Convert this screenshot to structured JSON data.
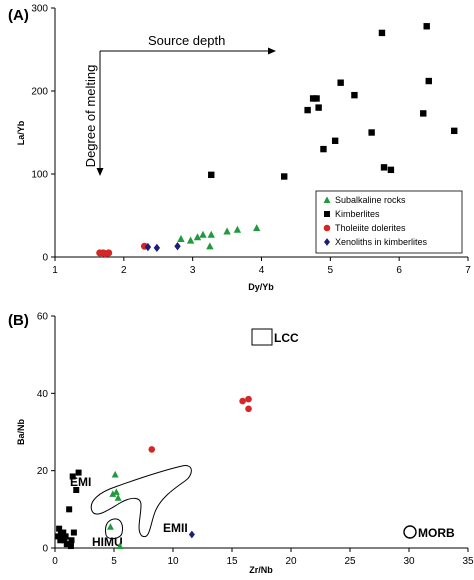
{
  "colors": {
    "subalkaline": "#1f9a3c",
    "kimberlite": "#000000",
    "tholeiite": "#d62626",
    "xenolith": "#1c1f7a"
  },
  "chart_data": [
    {
      "type": "scatter",
      "panel_label": "(A)",
      "xlabel": "Dy/Yb",
      "ylabel": "La/Yb",
      "xlim": [
        1,
        7
      ],
      "ylim": [
        0,
        300
      ],
      "x_ticks": [
        1,
        2,
        3,
        4,
        5,
        6,
        7
      ],
      "y_ticks": [
        0,
        100,
        200,
        300
      ],
      "x_tick_labels": [
        "1",
        "2",
        "3",
        "4",
        "5",
        "6",
        "7"
      ],
      "y_tick_labels": [
        "0",
        "100",
        "200",
        "300"
      ],
      "grid": false,
      "legend_position": "bottom-right",
      "annotations": {
        "source_depth": "Source depth",
        "degree_of_melting": "Degree of melting"
      },
      "series": [
        {
          "name": "Subalkaline rocks",
          "marker": "triangle",
          "color": "#1f9a3c",
          "points": [
            [
              2.83,
              22
            ],
            [
              2.97,
              20
            ],
            [
              3.07,
              24
            ],
            [
              3.15,
              27
            ],
            [
              3.25,
              13
            ],
            [
              3.27,
              27
            ],
            [
              3.5,
              31
            ],
            [
              3.65,
              33
            ],
            [
              3.93,
              35
            ]
          ]
        },
        {
          "name": "Kimberlites",
          "marker": "square",
          "color": "#000000",
          "points": [
            [
              3.27,
              99
            ],
            [
              4.33,
              97
            ],
            [
              4.67,
              177
            ],
            [
              4.75,
              191
            ],
            [
              4.8,
              191
            ],
            [
              4.83,
              180
            ],
            [
              4.9,
              130
            ],
            [
              5.07,
              140
            ],
            [
              5.15,
              210
            ],
            [
              5.35,
              195
            ],
            [
              5.6,
              150
            ],
            [
              5.75,
              270
            ],
            [
              5.78,
              108
            ],
            [
              5.88,
              105
            ],
            [
              6.35,
              173
            ],
            [
              6.4,
              278
            ],
            [
              6.43,
              212
            ],
            [
              6.8,
              152
            ]
          ]
        },
        {
          "name": "Tholeiite dolerites",
          "color": "#d62626",
          "marker": "circle",
          "points": [
            [
              1.65,
              5
            ],
            [
              1.7,
              5
            ],
            [
              1.73,
              4
            ],
            [
              1.78,
              5
            ],
            [
              2.3,
              13
            ]
          ]
        },
        {
          "name": "Xenoliths in kimberlites",
          "marker": "diamond",
          "color": "#1c1f7a",
          "points": [
            [
              2.35,
              12
            ],
            [
              2.48,
              11
            ],
            [
              2.78,
              13
            ]
          ]
        }
      ]
    },
    {
      "type": "scatter",
      "panel_label": "(B)",
      "xlabel": "Zr/Nb",
      "ylabel": "Ba/Nb",
      "xlim": [
        0,
        35
      ],
      "ylim": [
        0,
        60
      ],
      "x_ticks": [
        0,
        5,
        10,
        15,
        20,
        25,
        30,
        35
      ],
      "y_ticks": [
        0,
        20,
        40,
        60
      ],
      "x_tick_labels": [
        "0",
        "5",
        "10",
        "15",
        "20",
        "25",
        "30",
        "35"
      ],
      "y_tick_labels": [
        "0",
        "20",
        "40",
        "60"
      ],
      "grid": false,
      "region_labels": {
        "lcc": "LCC",
        "emi": "EMI",
        "emii": "EMII",
        "himu": "HIMU",
        "morb": "MORB"
      },
      "series": [
        {
          "marker": "square",
          "color": "#000000",
          "points": [
            [
              0.3,
              3
            ],
            [
              0.35,
              5
            ],
            [
              0.45,
              2
            ],
            [
              0.5,
              4
            ],
            [
              0.6,
              3
            ],
            [
              0.7,
              4
            ],
            [
              0.8,
              2
            ],
            [
              0.9,
              3
            ],
            [
              1.0,
              1
            ],
            [
              1.2,
              10
            ],
            [
              1.4,
              2
            ],
            [
              1.5,
              18.5
            ],
            [
              1.8,
              15
            ],
            [
              2.0,
              19.5
            ],
            [
              1.6,
              4
            ],
            [
              1.35,
              0.5
            ]
          ]
        },
        {
          "marker": "triangle",
          "color": "#1f9a3c",
          "points": [
            [
              4.7,
              5.5
            ],
            [
              4.9,
              14
            ],
            [
              5.1,
              19
            ],
            [
              5.2,
              14.5
            ],
            [
              5.35,
              13
            ],
            [
              5.5,
              0.5
            ]
          ]
        },
        {
          "marker": "circle",
          "color": "#d62626",
          "points": [
            [
              8.2,
              25.5
            ],
            [
              15.9,
              38
            ],
            [
              16.4,
              38.5
            ],
            [
              16.4,
              36
            ]
          ]
        },
        {
          "marker": "diamond",
          "color": "#1c1f7a",
          "points": [
            [
              11.6,
              3.5
            ]
          ]
        }
      ]
    }
  ]
}
